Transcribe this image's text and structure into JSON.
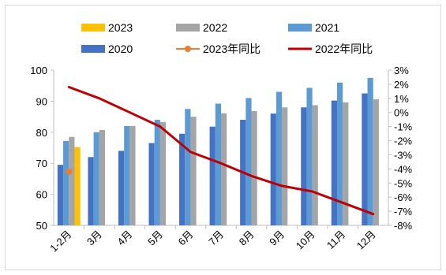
{
  "chart_data": {
    "type": "bar",
    "categories": [
      "1-2月",
      "3月",
      "4月",
      "5月",
      "6月",
      "7月",
      "8月",
      "9月",
      "10月",
      "11月",
      "12月"
    ],
    "series": [
      {
        "name": "2020",
        "kind": "bar",
        "axis": "left",
        "color": "#4472c4",
        "values": [
          69.5,
          72,
          74,
          76.5,
          79.5,
          81.8,
          84,
          86,
          88,
          90.2,
          92.5
        ]
      },
      {
        "name": "2021",
        "kind": "bar",
        "axis": "left",
        "color": "#5b9bd5",
        "values": [
          77.2,
          80,
          82,
          84,
          87.5,
          89.2,
          91,
          93,
          94.3,
          96,
          97.5
        ]
      },
      {
        "name": "2022",
        "kind": "bar",
        "axis": "left",
        "color": "#a5a5a5",
        "values": [
          78.5,
          80.7,
          82,
          83.3,
          85,
          86.1,
          86.8,
          88,
          88.7,
          89.6,
          90.6
        ]
      },
      {
        "name": "2023",
        "kind": "bar",
        "axis": "left",
        "color": "#ffc000",
        "values": [
          75.2,
          null,
          null,
          null,
          null,
          null,
          null,
          null,
          null,
          null,
          null
        ]
      },
      {
        "name": "2023年同比",
        "kind": "line-marker",
        "axis": "right",
        "color": "#ed7d31",
        "values": [
          -4.2,
          null,
          null,
          null,
          null,
          null,
          null,
          null,
          null,
          null,
          null
        ]
      },
      {
        "name": "2022年同比",
        "kind": "line",
        "axis": "right",
        "color": "#c00000",
        "values": [
          1.8,
          1.0,
          0.0,
          -1.0,
          -2.8,
          -3.6,
          -4.5,
          -5.2,
          -5.6,
          -6.4,
          -7.2
        ]
      }
    ],
    "ylim": [
      50,
      100
    ],
    "yticks": [
      50,
      60,
      70,
      80,
      90,
      100
    ],
    "y2lim": [
      -8,
      3
    ],
    "y2ticks": [
      "3%",
      "2%",
      "1%",
      "0%",
      "-1%",
      "-2%",
      "-3%",
      "-4%",
      "-5%",
      "-6%",
      "-7%",
      "-8%"
    ],
    "legend": {
      "placement": "top",
      "rows": [
        [
          "2023",
          "2022",
          "2021"
        ],
        [
          "2020",
          "2023年同比",
          "2022年同比"
        ]
      ]
    },
    "grid": false
  }
}
